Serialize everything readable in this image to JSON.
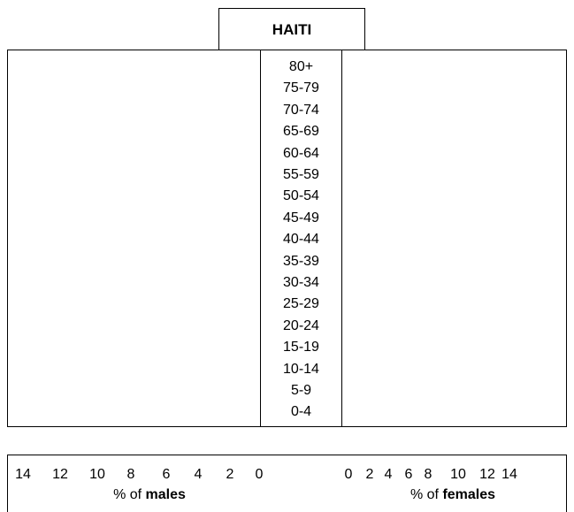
{
  "chart_data": {
    "type": "bar",
    "title": "HAITI",
    "age_groups": [
      "80+",
      "75-79",
      "70-74",
      "65-69",
      "60-64",
      "55-59",
      "50-54",
      "45-49",
      "40-44",
      "35-39",
      "30-34",
      "25-29",
      "20-24",
      "15-19",
      "10-14",
      "5-9",
      "0-4"
    ],
    "male_ticks": [
      "14",
      "12",
      "10",
      "8",
      "6",
      "4",
      "2",
      "0"
    ],
    "female_ticks": [
      "0",
      "2",
      "4",
      "6",
      "8",
      "10",
      "12",
      "14"
    ],
    "xlabel_males_prefix": "% of",
    "xlabel_males_bold": "males",
    "xlabel_females_prefix": "% of",
    "xlabel_females_bold": "females",
    "xlim": [
      0,
      14
    ],
    "series": []
  }
}
